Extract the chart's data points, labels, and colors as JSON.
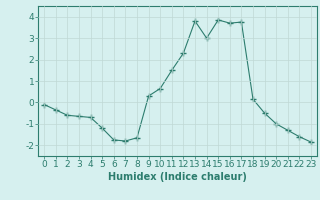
{
  "x": [
    0,
    1,
    2,
    3,
    4,
    5,
    6,
    7,
    8,
    9,
    10,
    11,
    12,
    13,
    14,
    15,
    16,
    17,
    18,
    19,
    20,
    21,
    22,
    23
  ],
  "y": [
    -0.1,
    -0.35,
    -0.6,
    -0.65,
    -0.7,
    -1.2,
    -1.75,
    -1.8,
    -1.65,
    0.3,
    0.65,
    1.5,
    2.3,
    3.8,
    3.0,
    3.85,
    3.7,
    3.75,
    0.15,
    -0.5,
    -1.0,
    -1.3,
    -1.6,
    -1.85
  ],
  "line_color": "#2d7d6e",
  "marker": "+",
  "marker_size": 4,
  "bg_color": "#d6f0ef",
  "grid_color": "#c0d8d5",
  "xlabel": "Humidex (Indice chaleur)",
  "xlabel_fontsize": 7,
  "tick_fontsize": 6.5,
  "xlim": [
    -0.5,
    23.5
  ],
  "ylim": [
    -2.5,
    4.5
  ],
  "yticks": [
    -2,
    -1,
    0,
    1,
    2,
    3,
    4
  ],
  "xticks": [
    0,
    1,
    2,
    3,
    4,
    5,
    6,
    7,
    8,
    9,
    10,
    11,
    12,
    13,
    14,
    15,
    16,
    17,
    18,
    19,
    20,
    21,
    22,
    23
  ]
}
